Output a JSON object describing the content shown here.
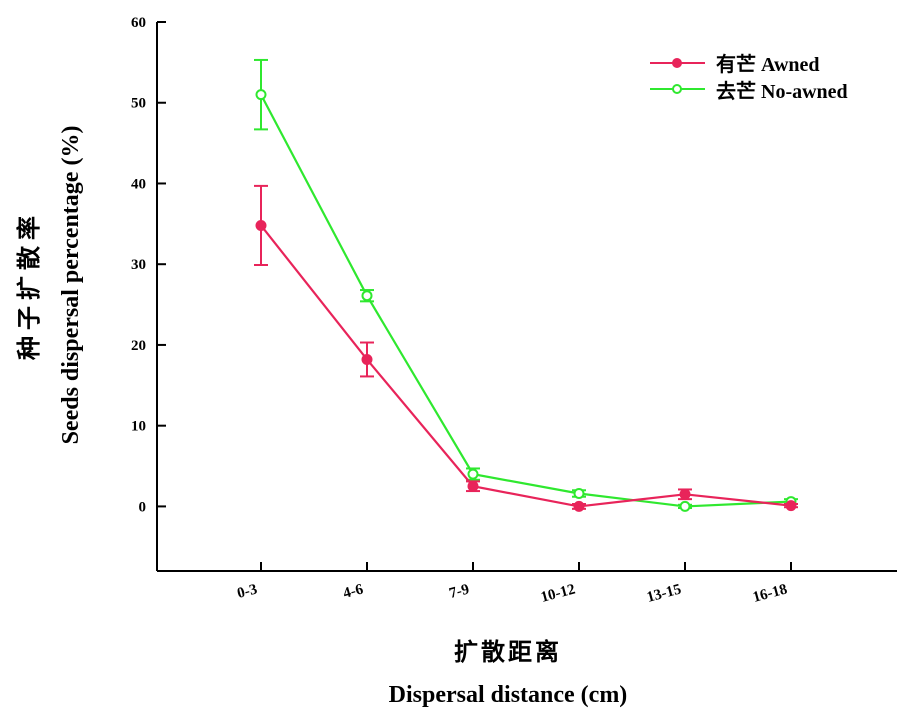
{
  "chart_data": {
    "type": "line",
    "categories": [
      "0-3",
      "4-6",
      "7-9",
      "10-12",
      "13-15",
      "16-18"
    ],
    "ylim": [
      -8,
      60
    ],
    "yticks": [
      0,
      10,
      20,
      30,
      40,
      50,
      60
    ],
    "ytick_labels": [
      "0",
      "10",
      "20",
      "30",
      "40",
      "50",
      "60"
    ],
    "xlabel_cn": "扩散距离",
    "xlabel_en": "Dispersal distance (cm)",
    "ylabel_cn": "种子扩散率",
    "ylabel_en": "Seeds dispersal percentage (%)",
    "legend_position": "top-right",
    "series": [
      {
        "name": "有芒 Awned",
        "color": "#e8245a",
        "marker": "filled-circle",
        "values": [
          34.8,
          18.2,
          2.5,
          0.0,
          1.5,
          0.1
        ],
        "errors": [
          4.9,
          2.1,
          0.6,
          0.3,
          0.6,
          0.2
        ]
      },
      {
        "name": "去芒 No-awned",
        "color": "#2fe82f",
        "marker": "open-circle",
        "values": [
          51.0,
          26.1,
          4.0,
          1.6,
          0.0,
          0.6
        ],
        "errors": [
          4.3,
          0.7,
          0.7,
          0.4,
          0.2,
          0.3
        ]
      }
    ]
  }
}
